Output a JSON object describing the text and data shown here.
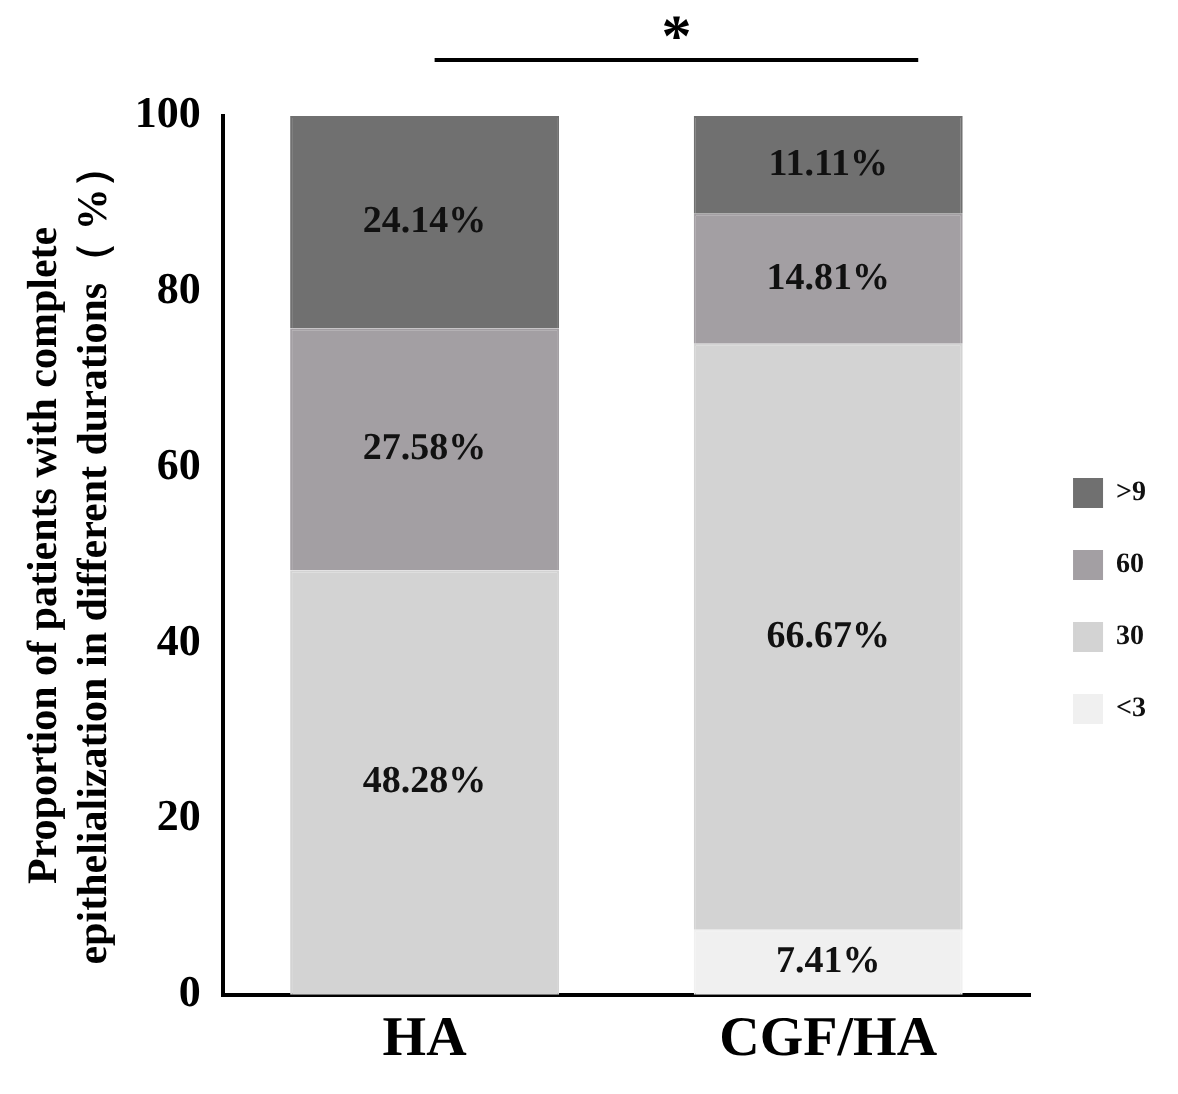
{
  "chart_data": {
    "type": "bar",
    "stacked": true,
    "ylabel": "Proportion of patients with complete epithelialization in different durations（ %）",
    "categories": [
      "HA",
      "CGF/HA"
    ],
    "series": [
      {
        "name": "<3",
        "color": "#f0f0f0",
        "values": [
          0,
          7.41
        ],
        "value_labels": [
          null,
          "7.41%"
        ]
      },
      {
        "name": "30",
        "color": "#d3d3d3",
        "values": [
          48.28,
          66.67
        ],
        "value_labels": [
          "48.28%",
          "66.67%"
        ]
      },
      {
        "name": "60",
        "color": "#a39fa3",
        "values": [
          27.58,
          14.81
        ],
        "value_labels": [
          "27.58%",
          "14.81%"
        ]
      },
      {
        "name": ">9",
        "color": "#707070",
        "values": [
          24.14,
          11.11
        ],
        "value_labels": [
          "24.14%",
          "11.11%"
        ]
      }
    ],
    "ylim": [
      0,
      100
    ],
    "yticks": [
      0,
      20,
      40,
      60,
      80,
      100
    ],
    "grid": false,
    "legend": "right",
    "annotations": [
      "*"
    ]
  }
}
